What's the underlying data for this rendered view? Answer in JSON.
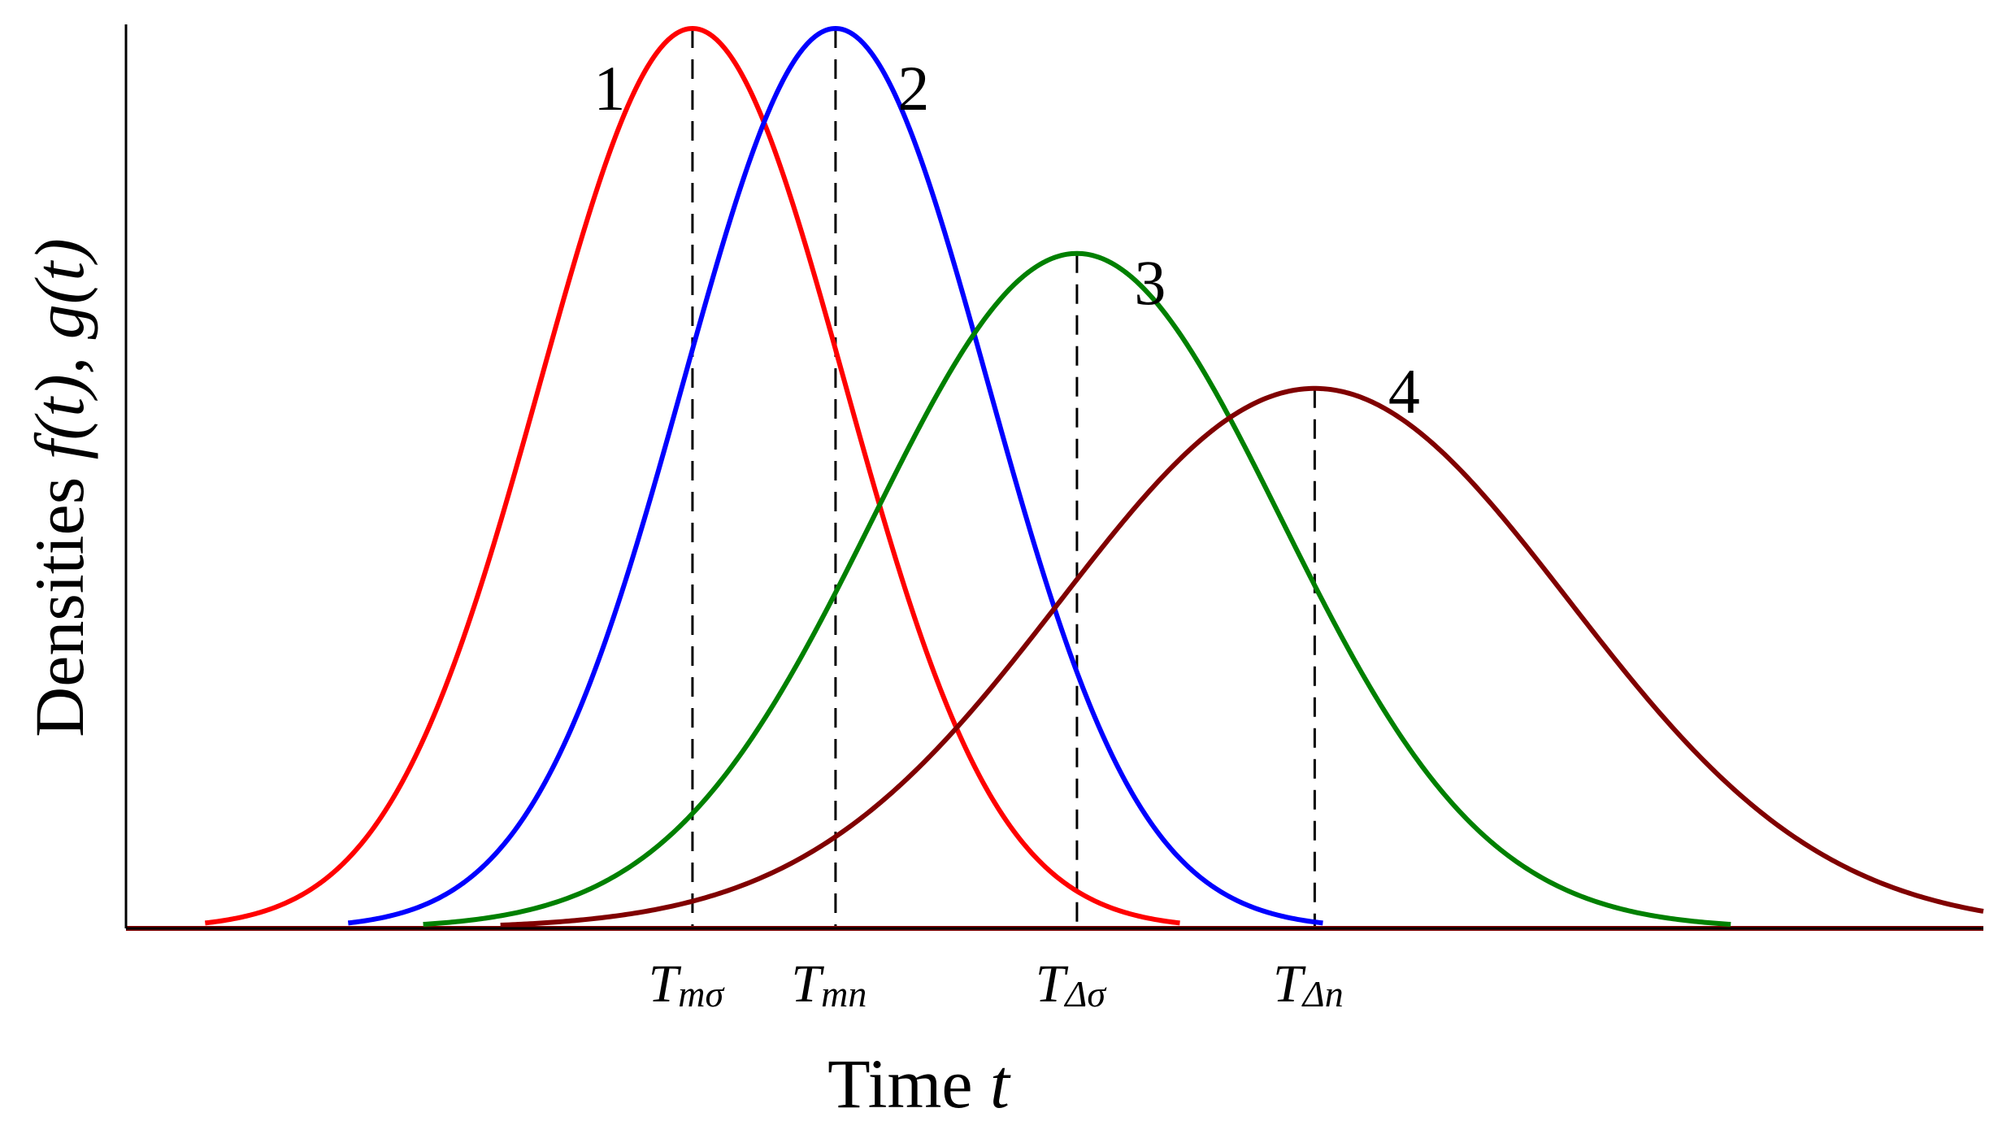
{
  "chart_data": {
    "type": "line",
    "title": "",
    "x_axis": {
      "label_prefix": "Time",
      "label_var": "t",
      "tick_values_shown": false
    },
    "y_axis": {
      "label_prefix": "Densities",
      "label_math": "f(t), g(t)",
      "tick_values_shown": false
    },
    "xlim": [
      0,
      100
    ],
    "ylim": [
      0,
      1.0
    ],
    "grid": false,
    "legend": "none",
    "series": [
      {
        "label": "1",
        "color": "#ff0000",
        "peak_x": 30.5,
        "peak_y": 1.0,
        "sigma": 8.2
      },
      {
        "label": "2",
        "color": "#0000ff",
        "peak_x": 38.2,
        "peak_y": 1.0,
        "sigma": 8.2
      },
      {
        "label": "3",
        "color": "#008000",
        "peak_x": 51.2,
        "peak_y": 0.75,
        "sigma": 11.0
      },
      {
        "label": "4",
        "color": "#800000",
        "peak_x": 64.0,
        "peak_y": 0.6,
        "sigma": 13.7
      }
    ],
    "markers": [
      {
        "x": 30.5,
        "label_main": "T",
        "label_sub": "mσ"
      },
      {
        "x": 38.2,
        "label_main": "T",
        "label_sub": "mn"
      },
      {
        "x": 51.2,
        "label_main": "T",
        "label_sub": "Δσ"
      },
      {
        "x": 64.0,
        "label_main": "T",
        "label_sub": "Δn"
      }
    ]
  }
}
